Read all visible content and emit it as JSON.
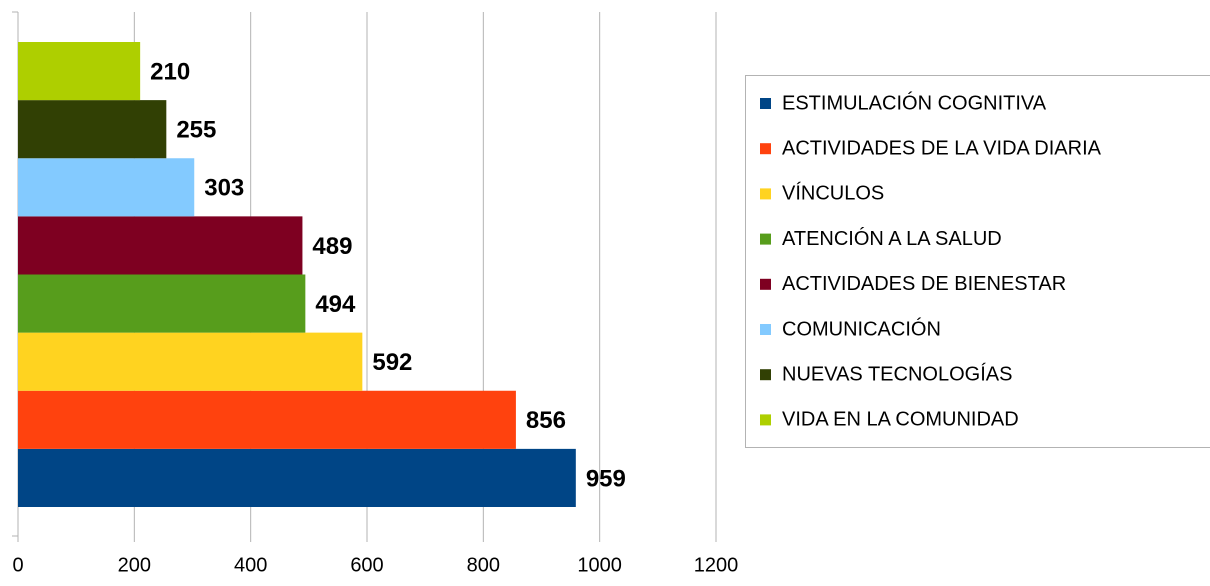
{
  "chart_data": {
    "type": "bar",
    "orientation": "horizontal",
    "categories": [
      null
    ],
    "series": [
      {
        "name": "ESTIMULACIÓN COGNITIVA",
        "color": "#004586",
        "values": [
          959
        ]
      },
      {
        "name": "ACTIVIDADES DE LA VIDA DIARIA",
        "color": "#ff420e",
        "values": [
          856
        ]
      },
      {
        "name": "VÍNCULOS",
        "color": "#ffd320",
        "values": [
          592
        ]
      },
      {
        "name": "ATENCIÓN A LA SALUD",
        "color": "#579d1c",
        "values": [
          494
        ]
      },
      {
        "name": "ACTIVIDADES DE BIENESTAR",
        "color": "#7e0021",
        "values": [
          489
        ]
      },
      {
        "name": "COMUNICACIÓN",
        "color": "#83caff",
        "values": [
          303
        ]
      },
      {
        "name": "NUEVAS TECNOLOGÍAS",
        "color": "#314004",
        "values": [
          255
        ]
      },
      {
        "name": "VIDA EN LA COMUNIDAD",
        "color": "#aecf00",
        "values": [
          210
        ]
      }
    ],
    "xlim": [
      0,
      1200
    ],
    "xticks": [
      0,
      200,
      400,
      600,
      800,
      1000,
      1200
    ],
    "grid": true,
    "legend": "right"
  }
}
